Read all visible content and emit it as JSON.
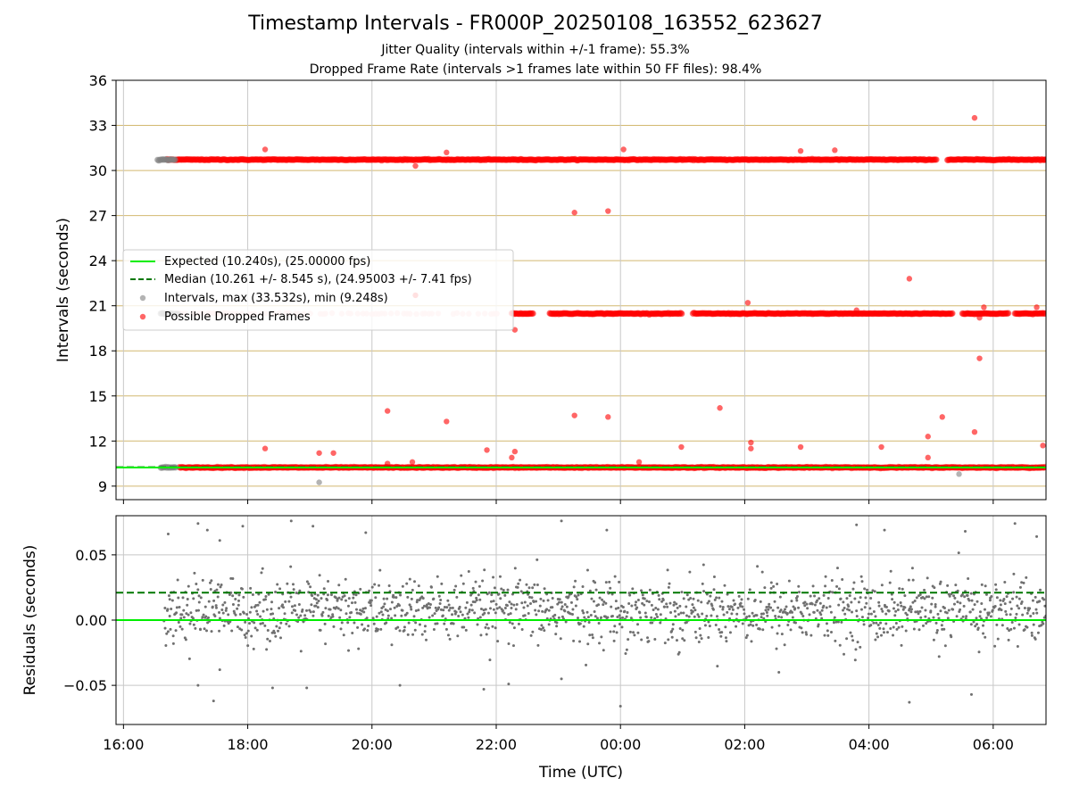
{
  "title": "Timestamp Intervals - FR000P_20250108_163552_623627",
  "subtitles": [
    "Jitter Quality (intervals within +/-1 frame): 55.3%",
    "Dropped Frame Rate (intervals >1 frames late within 50 FF files): 98.4%"
  ],
  "colors": {
    "expected": "#00ee00",
    "median": "#007700",
    "intervals": "#808080",
    "dropped": "#ff0000",
    "hgrid": "#d2b870",
    "vgrid": "#c8c8c8",
    "residual_points": "#707070"
  },
  "chart_data": [
    {
      "type": "scatter",
      "name": "intervals",
      "xlabel": "",
      "ylabel": "Intervals (seconds)",
      "x_unit": "hours since 16:00 UTC",
      "xlim": [
        -0.12,
        14.85
      ],
      "ylim": [
        8.1,
        36
      ],
      "yticks": [
        9,
        12,
        15,
        18,
        21,
        24,
        27,
        30,
        33,
        36
      ],
      "ytick_labels": [
        "9",
        "12",
        "15",
        "18",
        "21",
        "24",
        "27",
        "30",
        "33",
        "36"
      ],
      "grid": {
        "horizontal": true,
        "vertical": true
      },
      "legend": {
        "placement": "center-left",
        "entries": [
          "Expected (10.240s), (25.00000 fps)",
          "Median (10.261 +/- 8.545 s), (24.95003 +/- 7.41 fps)",
          "Intervals, max (33.532s), min (9.248s)",
          "Possible Dropped Frames"
        ]
      },
      "expected": 10.24,
      "median": 10.261,
      "bands": [
        {
          "y": 30.72,
          "start": 0.7,
          "end": 14.85,
          "series": "dropped",
          "gaps": [
            [
              13.1,
              13.25
            ]
          ]
        },
        {
          "y": 20.48,
          "start": 6.25,
          "end": 14.85,
          "series": "dropped",
          "gaps": [
            [
              6.6,
              6.85
            ],
            [
              9.0,
              9.15
            ],
            [
              13.35,
              13.5
            ],
            [
              14.25,
              14.35
            ]
          ]
        },
        {
          "y": 10.24,
          "start": 0.9,
          "end": 14.85,
          "series": "dropped",
          "gaps": []
        },
        {
          "y": 30.72,
          "start": 0.55,
          "end": 0.85,
          "series": "intervals",
          "gaps": []
        },
        {
          "y": 10.24,
          "start": 0.6,
          "end": 0.85,
          "series": "intervals",
          "gaps": []
        },
        {
          "y": 20.48,
          "start": 0.6,
          "end": 0.9,
          "series": "intervals",
          "gaps": []
        }
      ],
      "faint_band": {
        "y": 20.48,
        "start": 0.85,
        "end": 6.25
      },
      "dropped_outliers": [
        [
          2.28,
          31.4
        ],
        [
          2.28,
          11.5
        ],
        [
          3.15,
          11.2
        ],
        [
          3.38,
          11.2
        ],
        [
          4.25,
          14.0
        ],
        [
          4.7,
          30.3
        ],
        [
          5.2,
          31.2
        ],
        [
          5.2,
          13.3
        ],
        [
          6.3,
          11.3
        ],
        [
          6.25,
          10.9
        ],
        [
          6.3,
          19.4
        ],
        [
          5.85,
          11.4
        ],
        [
          7.26,
          27.2
        ],
        [
          7.26,
          13.7
        ],
        [
          7.8,
          27.3
        ],
        [
          7.8,
          13.6
        ],
        [
          8.05,
          31.4
        ],
        [
          8.3,
          10.6
        ],
        [
          8.98,
          11.6
        ],
        [
          9.6,
          14.2
        ],
        [
          10.05,
          21.2
        ],
        [
          10.1,
          11.9
        ],
        [
          10.1,
          11.5
        ],
        [
          10.9,
          31.3
        ],
        [
          10.9,
          11.6
        ],
        [
          11.45,
          31.35
        ],
        [
          11.8,
          20.7
        ],
        [
          12.2,
          11.6
        ],
        [
          12.65,
          22.8
        ],
        [
          12.95,
          12.3
        ],
        [
          12.95,
          10.9
        ],
        [
          13.18,
          13.6
        ],
        [
          13.7,
          33.5
        ],
        [
          13.7,
          12.6
        ],
        [
          13.78,
          17.5
        ],
        [
          13.78,
          20.2
        ],
        [
          13.85,
          20.9
        ],
        [
          14.7,
          20.9
        ],
        [
          14.8,
          11.7
        ],
        [
          4.7,
          21.7
        ],
        [
          4.65,
          10.6
        ],
        [
          4.25,
          10.5
        ]
      ],
      "interval_outliers": [
        [
          3.15,
          9.25
        ],
        [
          13.45,
          9.8
        ]
      ]
    },
    {
      "type": "scatter",
      "name": "residuals",
      "xlabel": "Time (UTC)",
      "ylabel": "Residuals (seconds)",
      "x_unit": "hours since 16:00 UTC",
      "xlim": [
        -0.12,
        14.85
      ],
      "ylim": [
        -0.08,
        0.08
      ],
      "yticks": [
        -0.05,
        0.0,
        0.05
      ],
      "ytick_labels": [
        "−0.05",
        "0.00",
        "0.05"
      ],
      "xticks": [
        0,
        2,
        4,
        6,
        8,
        10,
        12,
        14
      ],
      "xtick_labels": [
        "16:00",
        "18:00",
        "20:00",
        "22:00",
        "00:00",
        "02:00",
        "04:00",
        "06:00"
      ],
      "grid": {
        "horizontal": true,
        "vertical": true
      },
      "expected_residual": 0.0,
      "median_residual": 0.021,
      "point_count": 1500,
      "spread": 0.0125,
      "start": 0.65,
      "end": 14.85,
      "outliers": [
        [
          0.72,
          0.066
        ],
        [
          1.2,
          0.074
        ],
        [
          1.35,
          0.069
        ],
        [
          1.55,
          0.061
        ],
        [
          1.92,
          0.072
        ],
        [
          2.7,
          0.076
        ],
        [
          3.05,
          0.072
        ],
        [
          3.9,
          0.067
        ],
        [
          7.05,
          0.076
        ],
        [
          7.78,
          0.069
        ],
        [
          11.8,
          0.073
        ],
        [
          12.25,
          0.069
        ],
        [
          13.55,
          0.068
        ],
        [
          14.35,
          0.074
        ],
        [
          14.7,
          0.064
        ],
        [
          1.2,
          -0.05
        ],
        [
          1.45,
          -0.062
        ],
        [
          2.4,
          -0.052
        ],
        [
          2.95,
          -0.052
        ],
        [
          4.45,
          -0.05
        ],
        [
          6.2,
          -0.049
        ],
        [
          5.8,
          -0.053
        ],
        [
          8.0,
          -0.066
        ],
        [
          12.65,
          -0.063
        ],
        [
          13.65,
          -0.057
        ],
        [
          1.55,
          -0.038
        ],
        [
          10.55,
          -0.04
        ],
        [
          7.05,
          -0.045
        ]
      ]
    }
  ]
}
